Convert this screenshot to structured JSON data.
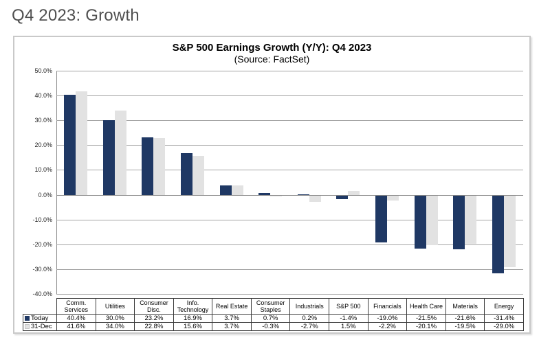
{
  "page": {
    "title": "Q4 2023: Growth"
  },
  "chart": {
    "colors": {
      "today_bar": "#1f3864",
      "dec_bar": "#e2e2e2",
      "gridline": "#a3a3a3",
      "frame_border": "#c9c9c9"
    }
  },
  "chart_data": {
    "type": "bar",
    "title": "S&P 500 Earnings Growth (Y/Y): Q4 2023",
    "subtitle": "(Source: FactSet)",
    "categories": [
      "Comm. Services",
      "Utilities",
      "Consumer Disc.",
      "Info. Technology",
      "Real Estate",
      "Consumer Staples",
      "Industrials",
      "S&P 500",
      "Financials",
      "Health Care",
      "Materials",
      "Energy"
    ],
    "series": [
      {
        "name": "Today",
        "color": "#1f3864",
        "values": [
          40.4,
          30.0,
          23.2,
          16.9,
          3.7,
          0.7,
          0.2,
          -1.4,
          -19.0,
          -21.5,
          -21.6,
          -31.4
        ]
      },
      {
        "name": "31-Dec",
        "color": "#e2e2e2",
        "values": [
          41.6,
          34.0,
          22.8,
          15.6,
          3.7,
          -0.3,
          -2.7,
          1.5,
          -2.2,
          -20.1,
          -19.5,
          -29.0
        ]
      }
    ],
    "ylim": [
      -40,
      50
    ],
    "ytick_step": 10,
    "ytick_labels": [
      "50.0%",
      "40.0%",
      "30.0%",
      "20.0%",
      "10.0%",
      "0.0%",
      "-10.0%",
      "-20.0%",
      "-30.0%",
      "-40.0%"
    ],
    "grid": true,
    "legend_position": "table-left",
    "value_suffix": "%"
  }
}
